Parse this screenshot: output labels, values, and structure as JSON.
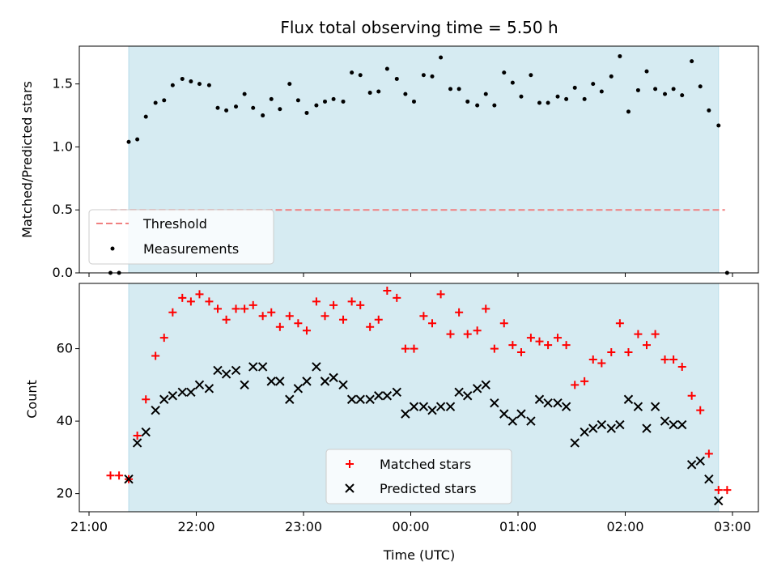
{
  "chart_data": [
    {
      "type": "scatter",
      "title": "Flux total observing time = 5.50 h",
      "xlabel": "",
      "ylabel": "Matched/Predicted stars",
      "xlim": [
        -0.1,
        6.25
      ],
      "ylim": [
        0,
        1.8
      ],
      "yticks": [
        0.0,
        0.5,
        1.0,
        1.5
      ],
      "ytick_labels": [
        "0.0",
        "0.5",
        "1.0",
        "1.5"
      ],
      "observing_window": [
        0.37,
        5.87
      ],
      "threshold": {
        "name": "Threshold",
        "value": 0.5,
        "x_range": [
          0.2,
          5.93
        ],
        "color": "#f08080"
      },
      "series": [
        {
          "name": "Measurements",
          "color": "#000000",
          "x": [
            0.2,
            0.28,
            0.37,
            0.45,
            0.53,
            0.62,
            0.7,
            0.78,
            0.87,
            0.95,
            1.03,
            1.12,
            1.2,
            1.28,
            1.37,
            1.45,
            1.53,
            1.62,
            1.7,
            1.78,
            1.87,
            1.95,
            2.03,
            2.12,
            2.2,
            2.28,
            2.37,
            2.45,
            2.53,
            2.62,
            2.7,
            2.78,
            2.87,
            2.95,
            3.03,
            3.12,
            3.2,
            3.28,
            3.37,
            3.45,
            3.53,
            3.62,
            3.7,
            3.78,
            3.87,
            3.95,
            4.03,
            4.12,
            4.2,
            4.28,
            4.37,
            4.45,
            4.53,
            4.62,
            4.7,
            4.78,
            4.87,
            4.95,
            5.03,
            5.12,
            5.2,
            5.28,
            5.37,
            5.45,
            5.53,
            5.62,
            5.7,
            5.78,
            5.87,
            5.95
          ],
          "y": [
            0.0,
            0.0,
            1.04,
            1.06,
            1.24,
            1.35,
            1.37,
            1.49,
            1.54,
            1.52,
            1.5,
            1.49,
            1.31,
            1.29,
            1.32,
            1.42,
            1.31,
            1.25,
            1.38,
            1.3,
            1.5,
            1.37,
            1.27,
            1.33,
            1.36,
            1.38,
            1.36,
            1.59,
            1.57,
            1.43,
            1.44,
            1.62,
            1.54,
            1.42,
            1.36,
            1.57,
            1.56,
            1.71,
            1.46,
            1.46,
            1.36,
            1.33,
            1.42,
            1.33,
            1.59,
            1.51,
            1.4,
            1.57,
            1.35,
            1.35,
            1.4,
            1.38,
            1.47,
            1.38,
            1.5,
            1.44,
            1.56,
            1.72,
            1.28,
            1.45,
            1.6,
            1.46,
            1.42,
            1.46,
            1.41,
            1.68,
            1.48,
            1.29,
            1.17,
            0.0
          ]
        }
      ],
      "legend": {
        "position": "lower-left"
      }
    },
    {
      "type": "scatter",
      "title": "",
      "xlabel": "Time (UTC)",
      "ylabel": "Count",
      "xlim": [
        -0.1,
        6.25
      ],
      "ylim": [
        15,
        78
      ],
      "yticks": [
        20,
        40,
        60
      ],
      "ytick_labels": [
        "20",
        "40",
        "60"
      ],
      "xticks": [
        0,
        1,
        2,
        3,
        4,
        5,
        6
      ],
      "xtick_labels": [
        "21:00",
        "22:00",
        "23:00",
        "00:00",
        "01:00",
        "02:00",
        "03:00"
      ],
      "observing_window": [
        0.37,
        5.87
      ],
      "series": [
        {
          "name": "Matched stars",
          "marker": "plus",
          "color": "#ff0000",
          "x": [
            0.2,
            0.28,
            0.37,
            0.45,
            0.53,
            0.62,
            0.7,
            0.78,
            0.87,
            0.95,
            1.03,
            1.12,
            1.2,
            1.28,
            1.37,
            1.45,
            1.53,
            1.62,
            1.7,
            1.78,
            1.87,
            1.95,
            2.03,
            2.12,
            2.2,
            2.28,
            2.37,
            2.45,
            2.53,
            2.62,
            2.7,
            2.78,
            2.87,
            2.95,
            3.03,
            3.12,
            3.2,
            3.28,
            3.37,
            3.45,
            3.53,
            3.62,
            3.7,
            3.78,
            3.87,
            3.95,
            4.03,
            4.12,
            4.2,
            4.28,
            4.37,
            4.45,
            4.53,
            4.62,
            4.7,
            4.78,
            4.87,
            4.95,
            5.03,
            5.12,
            5.2,
            5.28,
            5.37,
            5.45,
            5.53,
            5.62,
            5.7,
            5.78,
            5.87,
            5.95
          ],
          "y": [
            25,
            25,
            24,
            36,
            46,
            58,
            63,
            70,
            74,
            73,
            75,
            73,
            71,
            68,
            71,
            71,
            72,
            69,
            70,
            66,
            69,
            67,
            65,
            73,
            69,
            72,
            68,
            73,
            72,
            66,
            68,
            76,
            74,
            60,
            60,
            69,
            67,
            75,
            64,
            70,
            64,
            65,
            71,
            60,
            67,
            61,
            59,
            63,
            62,
            61,
            63,
            61,
            50,
            51,
            57,
            56,
            59,
            67,
            59,
            64,
            61,
            64,
            57,
            57,
            55,
            47,
            43,
            31,
            21,
            21
          ]
        },
        {
          "name": "Predicted stars",
          "marker": "x",
          "color": "#000000",
          "x": [
            0.37,
            0.45,
            0.53,
            0.62,
            0.7,
            0.78,
            0.87,
            0.95,
            1.03,
            1.12,
            1.2,
            1.28,
            1.37,
            1.45,
            1.53,
            1.62,
            1.7,
            1.78,
            1.87,
            1.95,
            2.03,
            2.12,
            2.2,
            2.28,
            2.37,
            2.45,
            2.53,
            2.62,
            2.7,
            2.78,
            2.87,
            2.95,
            3.03,
            3.12,
            3.2,
            3.28,
            3.37,
            3.45,
            3.53,
            3.62,
            3.7,
            3.78,
            3.87,
            3.95,
            4.03,
            4.12,
            4.2,
            4.28,
            4.37,
            4.45,
            4.53,
            4.62,
            4.7,
            4.78,
            4.87,
            4.95,
            5.03,
            5.12,
            5.2,
            5.28,
            5.37,
            5.45,
            5.53,
            5.62,
            5.7,
            5.78,
            5.87
          ],
          "y": [
            24,
            34,
            37,
            43,
            46,
            47,
            48,
            48,
            50,
            49,
            54,
            53,
            54,
            50,
            55,
            55,
            51,
            51,
            46,
            49,
            51,
            55,
            51,
            52,
            50,
            46,
            46,
            46,
            47,
            47,
            48,
            42,
            44,
            44,
            43,
            44,
            44,
            48,
            47,
            49,
            50,
            45,
            42,
            40,
            42,
            40,
            46,
            45,
            45,
            44,
            34,
            37,
            38,
            39,
            38,
            39,
            46,
            44,
            38,
            44,
            40,
            39,
            39,
            28,
            29,
            24,
            18
          ]
        }
      ],
      "legend": {
        "position": "lower-center"
      }
    }
  ]
}
